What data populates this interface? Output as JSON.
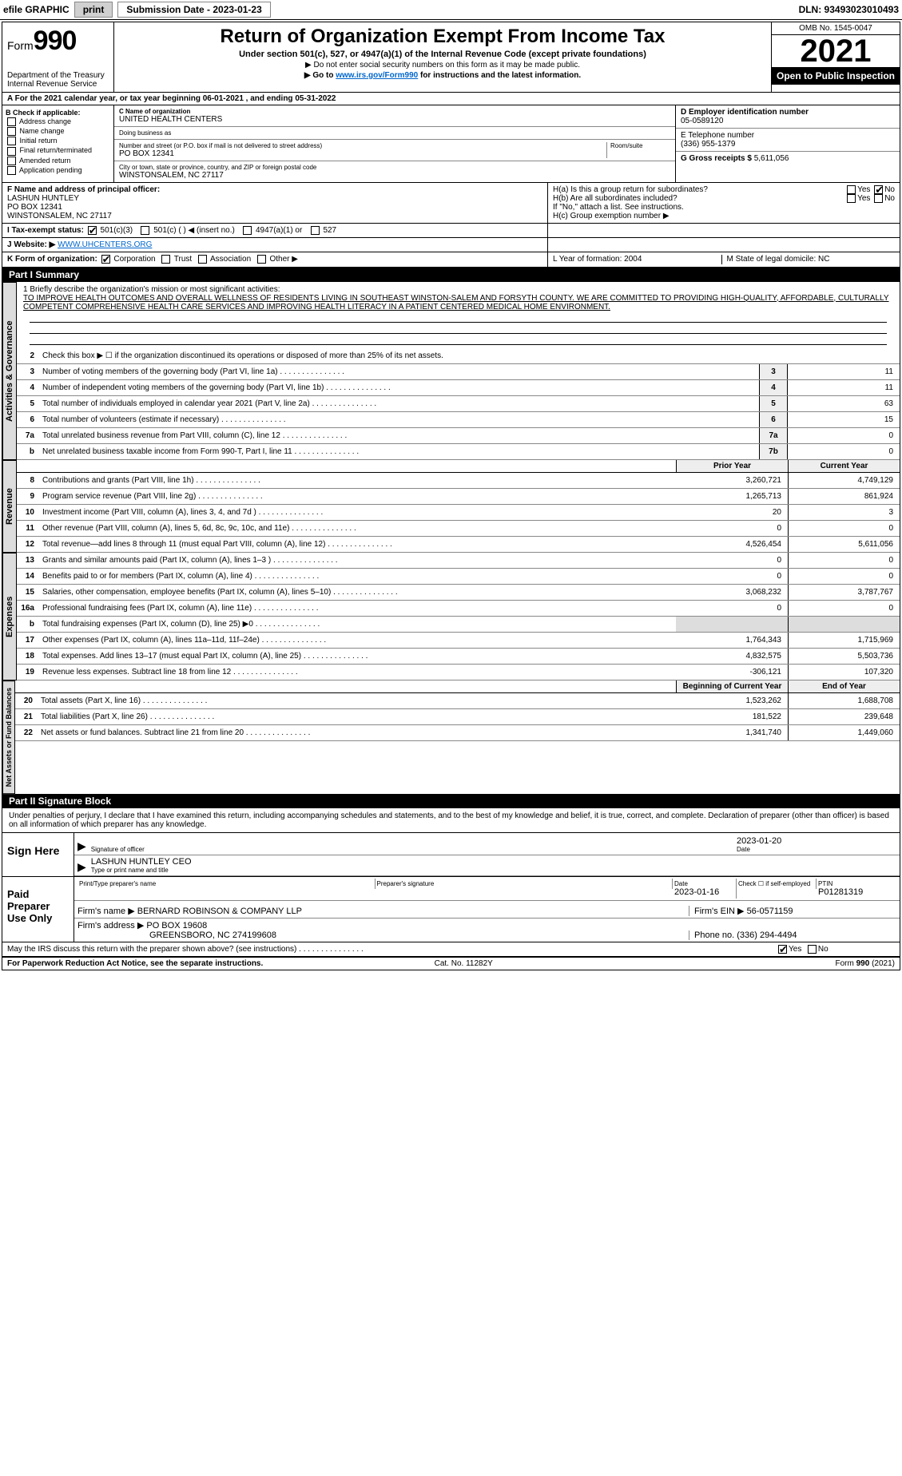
{
  "topbar": {
    "efile_label": "efile GRAPHIC",
    "print_btn": "print",
    "submission_label": "Submission Date - 2023-01-23",
    "dln": "DLN: 93493023010493"
  },
  "header": {
    "form_word": "Form",
    "form_num": "990",
    "dept": "Department of the Treasury",
    "irs": "Internal Revenue Service",
    "title": "Return of Organization Exempt From Income Tax",
    "subtitle": "Under section 501(c), 527, or 4947(a)(1) of the Internal Revenue Code (except private foundations)",
    "note1": "▶ Do not enter social security numbers on this form as it may be made public.",
    "note2_pre": "▶ Go to ",
    "note2_link": "www.irs.gov/Form990",
    "note2_post": " for instructions and the latest information.",
    "omb": "OMB No. 1545-0047",
    "year": "2021",
    "open": "Open to Public Inspection"
  },
  "row_a": "A For the 2021 calendar year, or tax year beginning 06-01-2021    , and ending 05-31-2022",
  "col_b": {
    "hdr": "B Check if applicable:",
    "opts": [
      "Address change",
      "Name change",
      "Initial return",
      "Final return/terminated",
      "Amended return",
      "Application pending"
    ]
  },
  "col_c": {
    "name_label": "C Name of organization",
    "name": "UNITED HEALTH CENTERS",
    "dba_label": "Doing business as",
    "dba": "",
    "street_label": "Number and street (or P.O. box if mail is not delivered to street address)",
    "room_label": "Room/suite",
    "street": "PO BOX 12341",
    "city_label": "City or town, state or province, country, and ZIP or foreign postal code",
    "city": "WINSTONSALEM, NC  27117"
  },
  "col_d": {
    "ein_label": "D Employer identification number",
    "ein": "05-0589120",
    "phone_label": "E Telephone number",
    "phone": "(336) 955-1379",
    "gross_label": "G Gross receipts $",
    "gross": "5,611,056"
  },
  "row_f": {
    "label": "F Name and address of principal officer:",
    "name": "LASHUN HUNTLEY",
    "addr1": "PO BOX 12341",
    "addr2": "WINSTONSALEM, NC  27117"
  },
  "row_h": {
    "ha": "H(a)  Is this a group return for subordinates?",
    "hb": "H(b)  Are all subordinates included?",
    "hb_note": "If \"No,\" attach a list. See instructions.",
    "hc": "H(c)  Group exemption number ▶",
    "yes": "Yes",
    "no": "No"
  },
  "row_i": {
    "label": "I  Tax-exempt status:",
    "o1": "501(c)(3)",
    "o2": "501(c) (   ) ◀ (insert no.)",
    "o3": "4947(a)(1) or",
    "o4": "527"
  },
  "row_j": {
    "label": "J  Website: ▶",
    "val": " WWW.UHCENTERS.ORG"
  },
  "row_k": {
    "label": "K Form of organization:",
    "o1": "Corporation",
    "o2": "Trust",
    "o3": "Association",
    "o4": "Other ▶"
  },
  "row_l": {
    "l": "L Year of formation: 2004",
    "m": "M State of legal domicile: NC"
  },
  "part1": {
    "hdr": "Part I      Summary"
  },
  "tabs": {
    "gov": "Activities & Governance",
    "rev": "Revenue",
    "exp": "Expenses",
    "net": "Net Assets or Fund Balances"
  },
  "mission": {
    "label": "1  Briefly describe the organization's mission or most significant activities:",
    "text": "TO IMPROVE HEALTH OUTCOMES AND OVERALL WELLNESS OF RESIDENTS LIVING IN SOUTHEAST WINSTON-SALEM AND FORSYTH COUNTY. WE ARE COMMITTED TO PROVIDING HIGH-QUALITY, AFFORDABLE, CULTURALLY COMPETENT COMPREHENSIVE HEALTH CARE SERVICES AND IMPROVING HEALTH LITERACY IN A PATIENT CENTERED MEDICAL HOME ENVIRONMENT."
  },
  "gov_lines": {
    "l2": "Check this box ▶ ☐  if the organization discontinued its operations or disposed of more than 25% of its net assets.",
    "l3": {
      "d": "Number of voting members of the governing body (Part VI, line 1a)",
      "b": "3",
      "v": "11"
    },
    "l4": {
      "d": "Number of independent voting members of the governing body (Part VI, line 1b)",
      "b": "4",
      "v": "11"
    },
    "l5": {
      "d": "Total number of individuals employed in calendar year 2021 (Part V, line 2a)",
      "b": "5",
      "v": "63"
    },
    "l6": {
      "d": "Total number of volunteers (estimate if necessary)",
      "b": "6",
      "v": "15"
    },
    "l7a": {
      "d": "Total unrelated business revenue from Part VIII, column (C), line 12",
      "b": "7a",
      "v": "0"
    },
    "l7b": {
      "d": "Net unrelated business taxable income from Form 990-T, Part I, line 11",
      "b": "7b",
      "v": "0"
    }
  },
  "col_hdrs": {
    "prior": "Prior Year",
    "current": "Current Year"
  },
  "rev_lines": [
    {
      "n": "8",
      "d": "Contributions and grants (Part VIII, line 1h)",
      "p": "3,260,721",
      "c": "4,749,129"
    },
    {
      "n": "9",
      "d": "Program service revenue (Part VIII, line 2g)",
      "p": "1,265,713",
      "c": "861,924"
    },
    {
      "n": "10",
      "d": "Investment income (Part VIII, column (A), lines 3, 4, and 7d )",
      "p": "20",
      "c": "3"
    },
    {
      "n": "11",
      "d": "Other revenue (Part VIII, column (A), lines 5, 6d, 8c, 9c, 10c, and 11e)",
      "p": "0",
      "c": "0"
    },
    {
      "n": "12",
      "d": "Total revenue—add lines 8 through 11 (must equal Part VIII, column (A), line 12)",
      "p": "4,526,454",
      "c": "5,611,056"
    }
  ],
  "exp_lines": [
    {
      "n": "13",
      "d": "Grants and similar amounts paid (Part IX, column (A), lines 1–3 )",
      "p": "0",
      "c": "0"
    },
    {
      "n": "14",
      "d": "Benefits paid to or for members (Part IX, column (A), line 4)",
      "p": "0",
      "c": "0"
    },
    {
      "n": "15",
      "d": "Salaries, other compensation, employee benefits (Part IX, column (A), lines 5–10)",
      "p": "3,068,232",
      "c": "3,787,767"
    },
    {
      "n": "16a",
      "d": "Professional fundraising fees (Part IX, column (A), line 11e)",
      "p": "0",
      "c": "0"
    },
    {
      "n": "b",
      "d": "Total fundraising expenses (Part IX, column (D), line 25) ▶0",
      "p": "",
      "c": "",
      "shade": true
    },
    {
      "n": "17",
      "d": "Other expenses (Part IX, column (A), lines 11a–11d, 11f–24e)",
      "p": "1,764,343",
      "c": "1,715,969"
    },
    {
      "n": "18",
      "d": "Total expenses. Add lines 13–17 (must equal Part IX, column (A), line 25)",
      "p": "4,832,575",
      "c": "5,503,736"
    },
    {
      "n": "19",
      "d": "Revenue less expenses. Subtract line 18 from line 12",
      "p": "-306,121",
      "c": "107,320"
    }
  ],
  "net_hdrs": {
    "beg": "Beginning of Current Year",
    "end": "End of Year"
  },
  "net_lines": [
    {
      "n": "20",
      "d": "Total assets (Part X, line 16)",
      "p": "1,523,262",
      "c": "1,688,708"
    },
    {
      "n": "21",
      "d": "Total liabilities (Part X, line 26)",
      "p": "181,522",
      "c": "239,648"
    },
    {
      "n": "22",
      "d": "Net assets or fund balances. Subtract line 21 from line 20",
      "p": "1,341,740",
      "c": "1,449,060"
    }
  ],
  "part2": {
    "hdr": "Part II     Signature Block"
  },
  "penalty": "Under penalties of perjury, I declare that I have examined this return, including accompanying schedules and statements, and to the best of my knowledge and belief, it is true, correct, and complete. Declaration of preparer (other than officer) is based on all information of which preparer has any knowledge.",
  "sign": {
    "here": "Sign Here",
    "sig_label": "Signature of officer",
    "date": "2023-01-20",
    "date_label": "Date",
    "name": "LASHUN HUNTLEY CEO",
    "name_label": "Type or print name and title"
  },
  "paid": {
    "here": "Paid Preparer Use Only",
    "h1": "Print/Type preparer's name",
    "h2": "Preparer's signature",
    "h3": "Date",
    "date": "2023-01-16",
    "h4": "Check ☐ if self-employed",
    "h5": "PTIN",
    "ptin": "P01281319",
    "firm_label": "Firm's name      ▶",
    "firm": "BERNARD ROBINSON & COMPANY LLP",
    "ein_label": "Firm's EIN ▶",
    "ein": "56-0571159",
    "addr_label": "Firm's address ▶",
    "addr1": "PO BOX 19608",
    "addr2": "GREENSBORO, NC  274199608",
    "phone_label": "Phone no.",
    "phone": "(336) 294-4494"
  },
  "may_irs": {
    "q": "May the IRS discuss this return with the preparer shown above? (see instructions)",
    "yes": "Yes",
    "no": "No"
  },
  "footer": {
    "left": "For Paperwork Reduction Act Notice, see the separate instructions.",
    "mid": "Cat. No. 11282Y",
    "right": "Form 990 (2021)"
  }
}
